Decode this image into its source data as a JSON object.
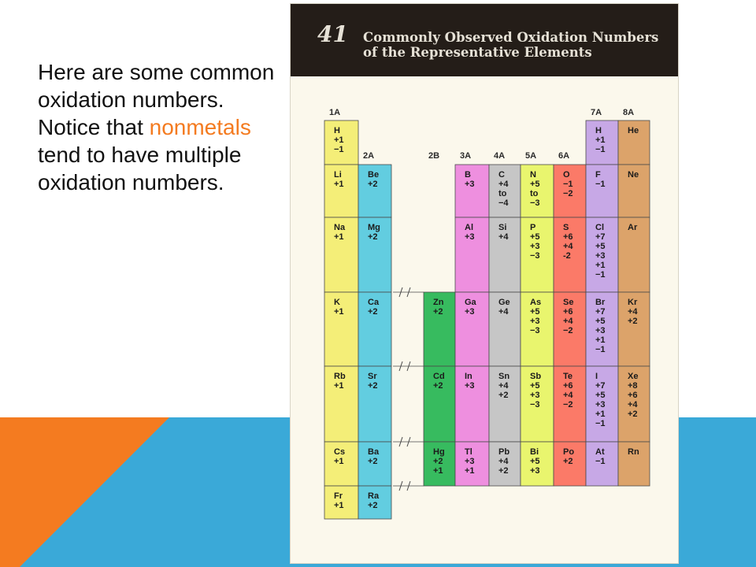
{
  "slide": {
    "text_before": "Here are some common oxidation numbers.  Notice that ",
    "text_highlight": "nonmetals",
    "text_after": " tend to have multiple oxidation numbers."
  },
  "figure": {
    "number": "41",
    "title_line1": "Commonly Observed Oxidation Numbers",
    "title_line2": "of the Representative Elements"
  },
  "colors": {
    "1A": "#f4ee78",
    "2A": "#62cde0",
    "2B": "#37bb5f",
    "3A": "#ee8fdf",
    "4A": "#c6c6c6",
    "5A": "#e9f56e",
    "6A": "#fb7a68",
    "7A": "#c7a8e6",
    "8A": "#dca36a",
    "accent": "#f47b20",
    "background_blue": "#3aa9d8",
    "background_orange": "#f47b20"
  },
  "groups": [
    {
      "id": "1A",
      "label": "1A",
      "elements": [
        {
          "symbol": "H",
          "oxidation": [
            "+1",
            "−1"
          ]
        },
        {
          "symbol": "Li",
          "oxidation": [
            "+1"
          ]
        },
        {
          "symbol": "Na",
          "oxidation": [
            "+1"
          ]
        },
        {
          "symbol": "K",
          "oxidation": [
            "+1"
          ]
        },
        {
          "symbol": "Rb",
          "oxidation": [
            "+1"
          ]
        },
        {
          "symbol": "Cs",
          "oxidation": [
            "+1"
          ]
        },
        {
          "symbol": "Fr",
          "oxidation": [
            "+1"
          ]
        }
      ]
    },
    {
      "id": "2A",
      "label": "2A",
      "elements": [
        {
          "symbol": "Be",
          "oxidation": [
            "+2"
          ]
        },
        {
          "symbol": "Mg",
          "oxidation": [
            "+2"
          ]
        },
        {
          "symbol": "Ca",
          "oxidation": [
            "+2"
          ]
        },
        {
          "symbol": "Sr",
          "oxidation": [
            "+2"
          ]
        },
        {
          "symbol": "Ba",
          "oxidation": [
            "+2"
          ]
        },
        {
          "symbol": "Ra",
          "oxidation": [
            "+2"
          ]
        }
      ]
    },
    {
      "id": "2B",
      "label": "2B",
      "elements": [
        {
          "symbol": "Zn",
          "oxidation": [
            "+2"
          ]
        },
        {
          "symbol": "Cd",
          "oxidation": [
            "+2"
          ]
        },
        {
          "symbol": "Hg",
          "oxidation": [
            "+2",
            "+1"
          ]
        }
      ]
    },
    {
      "id": "3A",
      "label": "3A",
      "elements": [
        {
          "symbol": "B",
          "oxidation": [
            "+3"
          ]
        },
        {
          "symbol": "Al",
          "oxidation": [
            "+3"
          ]
        },
        {
          "symbol": "Ga",
          "oxidation": [
            "+3"
          ]
        },
        {
          "symbol": "In",
          "oxidation": [
            "+3"
          ]
        },
        {
          "symbol": "Tl",
          "oxidation": [
            "+3",
            "+1"
          ]
        }
      ]
    },
    {
      "id": "4A",
      "label": "4A",
      "elements": [
        {
          "symbol": "C",
          "oxidation": [
            "+4",
            "to",
            "−4"
          ]
        },
        {
          "symbol": "Si",
          "oxidation": [
            "+4"
          ]
        },
        {
          "symbol": "Ge",
          "oxidation": [
            "+4"
          ]
        },
        {
          "symbol": "Sn",
          "oxidation": [
            "+4",
            "+2"
          ]
        },
        {
          "symbol": "Pb",
          "oxidation": [
            "+4",
            "+2"
          ]
        }
      ]
    },
    {
      "id": "5A",
      "label": "5A",
      "elements": [
        {
          "symbol": "N",
          "oxidation": [
            "+5",
            "to",
            "−3"
          ]
        },
        {
          "symbol": "P",
          "oxidation": [
            "+5",
            "+3",
            "−3"
          ]
        },
        {
          "symbol": "As",
          "oxidation": [
            "+5",
            "+3",
            "−3"
          ]
        },
        {
          "symbol": "Sb",
          "oxidation": [
            "+5",
            "+3",
            "−3"
          ]
        },
        {
          "symbol": "Bi",
          "oxidation": [
            "+5",
            "+3"
          ]
        }
      ]
    },
    {
      "id": "6A",
      "label": "6A",
      "elements": [
        {
          "symbol": "O",
          "oxidation": [
            "−1",
            "−2"
          ]
        },
        {
          "symbol": "S",
          "oxidation": [
            "+6",
            "+4",
            "-2"
          ]
        },
        {
          "symbol": "Se",
          "oxidation": [
            "+6",
            "+4",
            "−2"
          ]
        },
        {
          "symbol": "Te",
          "oxidation": [
            "+6",
            "+4",
            "−2"
          ]
        },
        {
          "symbol": "Po",
          "oxidation": [
            "+2"
          ]
        }
      ]
    },
    {
      "id": "7A",
      "label": "7A",
      "elements": [
        {
          "symbol": "H",
          "oxidation": [
            "+1",
            "−1"
          ]
        },
        {
          "symbol": "F",
          "oxidation": [
            "−1"
          ]
        },
        {
          "symbol": "Cl",
          "oxidation": [
            "+7",
            "+5",
            "+3",
            "+1",
            "−1"
          ]
        },
        {
          "symbol": "Br",
          "oxidation": [
            "+7",
            "+5",
            "+3",
            "+1",
            "−1"
          ]
        },
        {
          "symbol": "I",
          "oxidation": [
            "+7",
            "+5",
            "+3",
            "+1",
            "−1"
          ]
        },
        {
          "symbol": "At",
          "oxidation": [
            "−1"
          ]
        }
      ]
    },
    {
      "id": "8A",
      "label": "8A",
      "elements": [
        {
          "symbol": "He",
          "oxidation": []
        },
        {
          "symbol": "Ne",
          "oxidation": []
        },
        {
          "symbol": "Ar",
          "oxidation": []
        },
        {
          "symbol": "Kr",
          "oxidation": [
            "+4",
            "+2"
          ]
        },
        {
          "symbol": "Xe",
          "oxidation": [
            "+8",
            "+6",
            "+4",
            "+2"
          ]
        },
        {
          "symbol": "Rn",
          "oxidation": []
        }
      ]
    }
  ]
}
